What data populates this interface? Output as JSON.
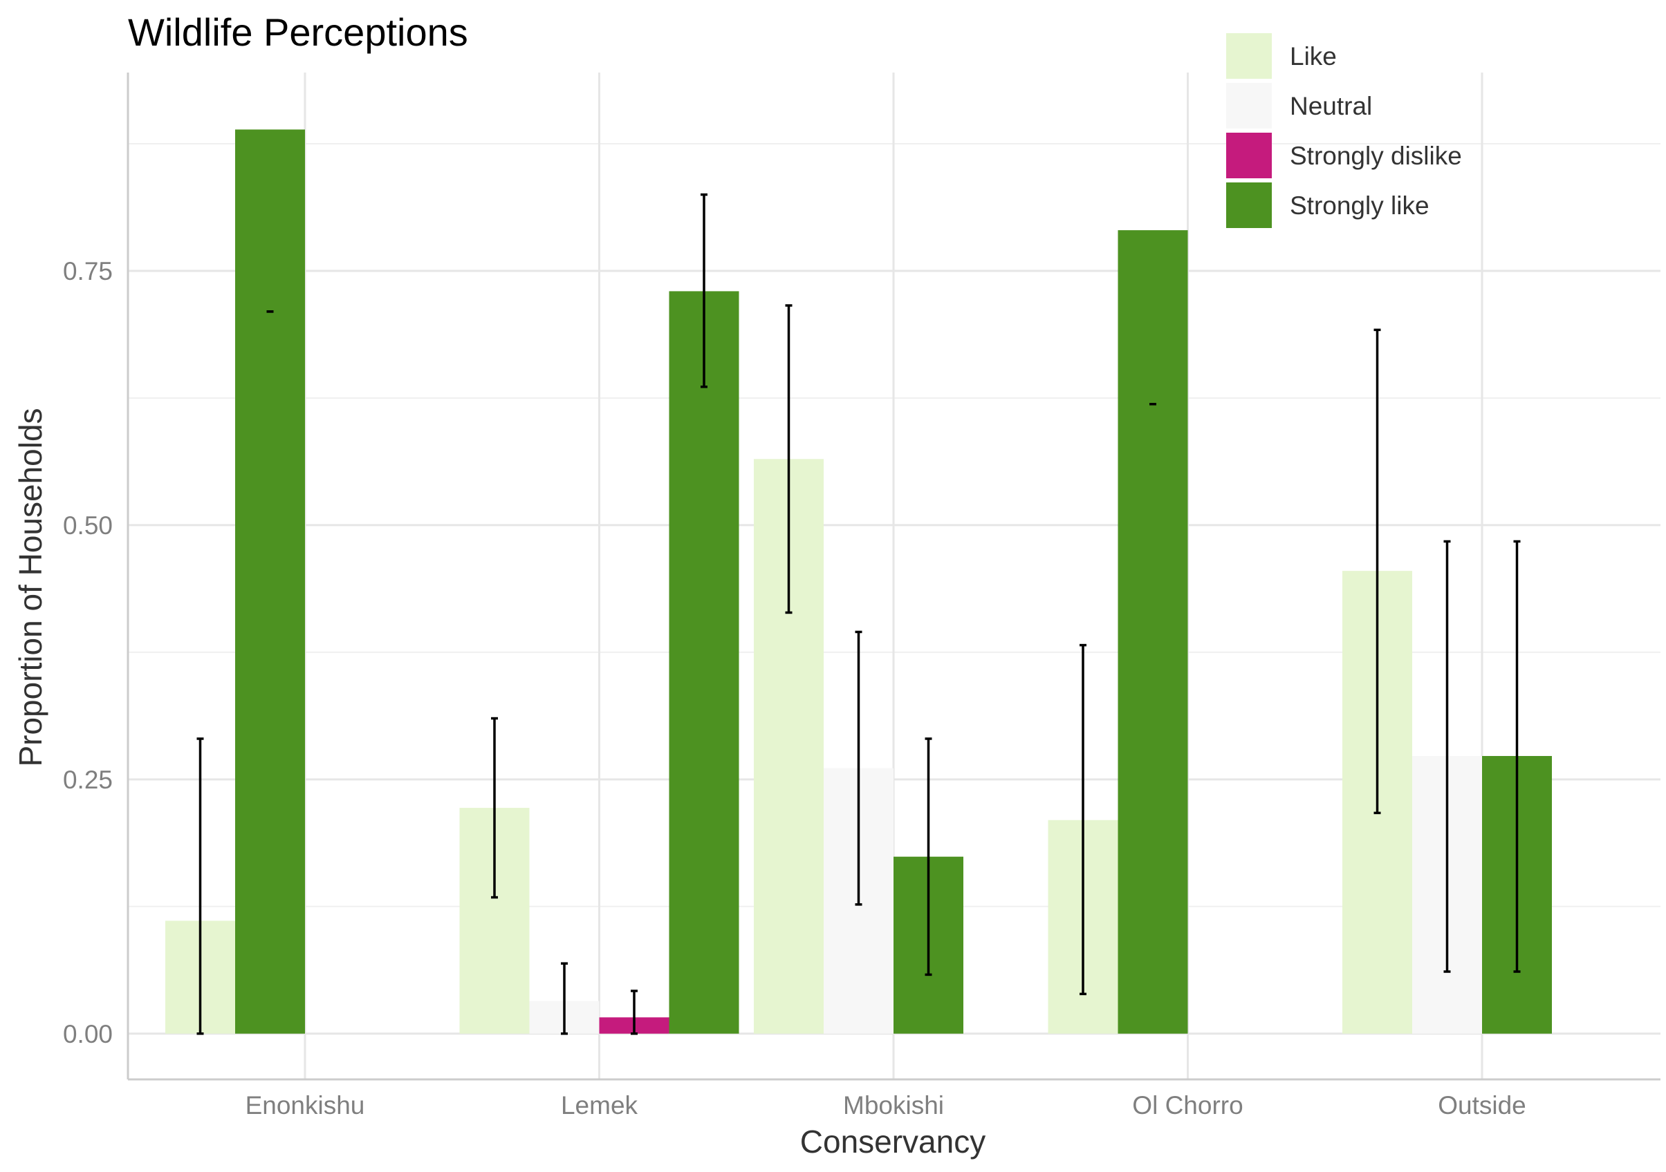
{
  "chart_data": {
    "type": "bar",
    "title": "Wildlife Perceptions",
    "xlabel": "Conservancy",
    "ylabel": "Proportion of Households",
    "categories": [
      "Enonkishu",
      "Lemek",
      "Mbokishi",
      "Ol Chorro",
      "Outside"
    ],
    "ylim": [
      -0.045,
      0.945
    ],
    "yticks": [
      0,
      0.25,
      0.5,
      0.75
    ],
    "ytick_labels": [
      "0.00",
      "0.25",
      "0.50",
      "0.75"
    ],
    "grid": true,
    "legend_position": "top-right",
    "series": [
      {
        "name": "Like",
        "color": "#e6f5d0",
        "values": [
          0.111,
          0.222,
          0.565,
          0.21,
          0.455
        ],
        "error_low": [
          0.0,
          0.134,
          0.414,
          0.039,
          0.217
        ],
        "error_high": [
          0.29,
          0.31,
          0.716,
          0.382,
          0.692
        ]
      },
      {
        "name": "Neutral",
        "color": "#f7f7f7",
        "values": [
          null,
          0.032,
          0.261,
          null,
          0.273
        ],
        "error_low": [
          null,
          0.0,
          0.127,
          null,
          0.061
        ],
        "error_high": [
          null,
          0.069,
          0.395,
          null,
          0.484
        ]
      },
      {
        "name": "Strongly dislike",
        "color": "#c51b7d",
        "values": [
          null,
          0.016,
          null,
          null,
          null
        ],
        "error_low": [
          null,
          0.0,
          null,
          null,
          null
        ],
        "error_high": [
          null,
          0.042,
          null,
          null,
          null
        ]
      },
      {
        "name": "Strongly like",
        "color": "#4d9221",
        "values": [
          0.889,
          0.73,
          0.174,
          0.79,
          0.273
        ],
        "error_low": [
          0.71,
          0.636,
          0.058,
          0.619,
          0.061
        ],
        "error_high": [
          0.71,
          0.825,
          0.29,
          0.619,
          0.484
        ]
      }
    ]
  }
}
